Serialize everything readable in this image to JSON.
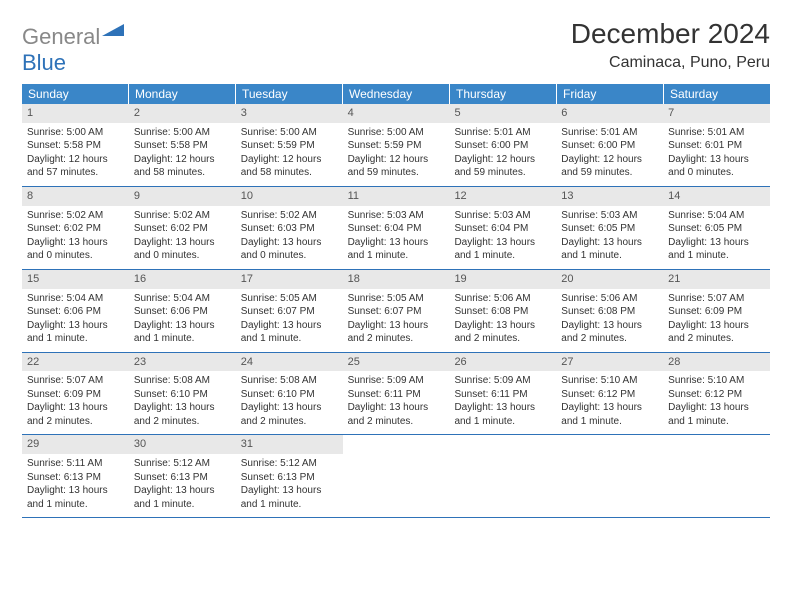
{
  "logo": {
    "text_gray": "General",
    "text_blue": "Blue"
  },
  "title": "December 2024",
  "location": "Caminaca, Puno, Peru",
  "colors": {
    "header_bg": "#3a86c8",
    "header_text": "#ffffff",
    "daynum_bg": "#e8e8e8",
    "border": "#2e72b8",
    "logo_gray": "#888888",
    "logo_blue": "#2e72b8",
    "text": "#333333"
  },
  "weekdays": [
    "Sunday",
    "Monday",
    "Tuesday",
    "Wednesday",
    "Thursday",
    "Friday",
    "Saturday"
  ],
  "labels": {
    "sunrise": "Sunrise:",
    "sunset": "Sunset:",
    "daylight": "Daylight:"
  },
  "days": [
    {
      "n": 1,
      "sr": "5:00 AM",
      "ss": "5:58 PM",
      "dl": "12 hours and 57 minutes."
    },
    {
      "n": 2,
      "sr": "5:00 AM",
      "ss": "5:58 PM",
      "dl": "12 hours and 58 minutes."
    },
    {
      "n": 3,
      "sr": "5:00 AM",
      "ss": "5:59 PM",
      "dl": "12 hours and 58 minutes."
    },
    {
      "n": 4,
      "sr": "5:00 AM",
      "ss": "5:59 PM",
      "dl": "12 hours and 59 minutes."
    },
    {
      "n": 5,
      "sr": "5:01 AM",
      "ss": "6:00 PM",
      "dl": "12 hours and 59 minutes."
    },
    {
      "n": 6,
      "sr": "5:01 AM",
      "ss": "6:00 PM",
      "dl": "12 hours and 59 minutes."
    },
    {
      "n": 7,
      "sr": "5:01 AM",
      "ss": "6:01 PM",
      "dl": "13 hours and 0 minutes."
    },
    {
      "n": 8,
      "sr": "5:02 AM",
      "ss": "6:02 PM",
      "dl": "13 hours and 0 minutes."
    },
    {
      "n": 9,
      "sr": "5:02 AM",
      "ss": "6:02 PM",
      "dl": "13 hours and 0 minutes."
    },
    {
      "n": 10,
      "sr": "5:02 AM",
      "ss": "6:03 PM",
      "dl": "13 hours and 0 minutes."
    },
    {
      "n": 11,
      "sr": "5:03 AM",
      "ss": "6:04 PM",
      "dl": "13 hours and 1 minute."
    },
    {
      "n": 12,
      "sr": "5:03 AM",
      "ss": "6:04 PM",
      "dl": "13 hours and 1 minute."
    },
    {
      "n": 13,
      "sr": "5:03 AM",
      "ss": "6:05 PM",
      "dl": "13 hours and 1 minute."
    },
    {
      "n": 14,
      "sr": "5:04 AM",
      "ss": "6:05 PM",
      "dl": "13 hours and 1 minute."
    },
    {
      "n": 15,
      "sr": "5:04 AM",
      "ss": "6:06 PM",
      "dl": "13 hours and 1 minute."
    },
    {
      "n": 16,
      "sr": "5:04 AM",
      "ss": "6:06 PM",
      "dl": "13 hours and 1 minute."
    },
    {
      "n": 17,
      "sr": "5:05 AM",
      "ss": "6:07 PM",
      "dl": "13 hours and 1 minute."
    },
    {
      "n": 18,
      "sr": "5:05 AM",
      "ss": "6:07 PM",
      "dl": "13 hours and 2 minutes."
    },
    {
      "n": 19,
      "sr": "5:06 AM",
      "ss": "6:08 PM",
      "dl": "13 hours and 2 minutes."
    },
    {
      "n": 20,
      "sr": "5:06 AM",
      "ss": "6:08 PM",
      "dl": "13 hours and 2 minutes."
    },
    {
      "n": 21,
      "sr": "5:07 AM",
      "ss": "6:09 PM",
      "dl": "13 hours and 2 minutes."
    },
    {
      "n": 22,
      "sr": "5:07 AM",
      "ss": "6:09 PM",
      "dl": "13 hours and 2 minutes."
    },
    {
      "n": 23,
      "sr": "5:08 AM",
      "ss": "6:10 PM",
      "dl": "13 hours and 2 minutes."
    },
    {
      "n": 24,
      "sr": "5:08 AM",
      "ss": "6:10 PM",
      "dl": "13 hours and 2 minutes."
    },
    {
      "n": 25,
      "sr": "5:09 AM",
      "ss": "6:11 PM",
      "dl": "13 hours and 2 minutes."
    },
    {
      "n": 26,
      "sr": "5:09 AM",
      "ss": "6:11 PM",
      "dl": "13 hours and 1 minute."
    },
    {
      "n": 27,
      "sr": "5:10 AM",
      "ss": "6:12 PM",
      "dl": "13 hours and 1 minute."
    },
    {
      "n": 28,
      "sr": "5:10 AM",
      "ss": "6:12 PM",
      "dl": "13 hours and 1 minute."
    },
    {
      "n": 29,
      "sr": "5:11 AM",
      "ss": "6:13 PM",
      "dl": "13 hours and 1 minute."
    },
    {
      "n": 30,
      "sr": "5:12 AM",
      "ss": "6:13 PM",
      "dl": "13 hours and 1 minute."
    },
    {
      "n": 31,
      "sr": "5:12 AM",
      "ss": "6:13 PM",
      "dl": "13 hours and 1 minute."
    }
  ],
  "layout": {
    "first_weekday_index": 0,
    "total_cells": 35
  }
}
